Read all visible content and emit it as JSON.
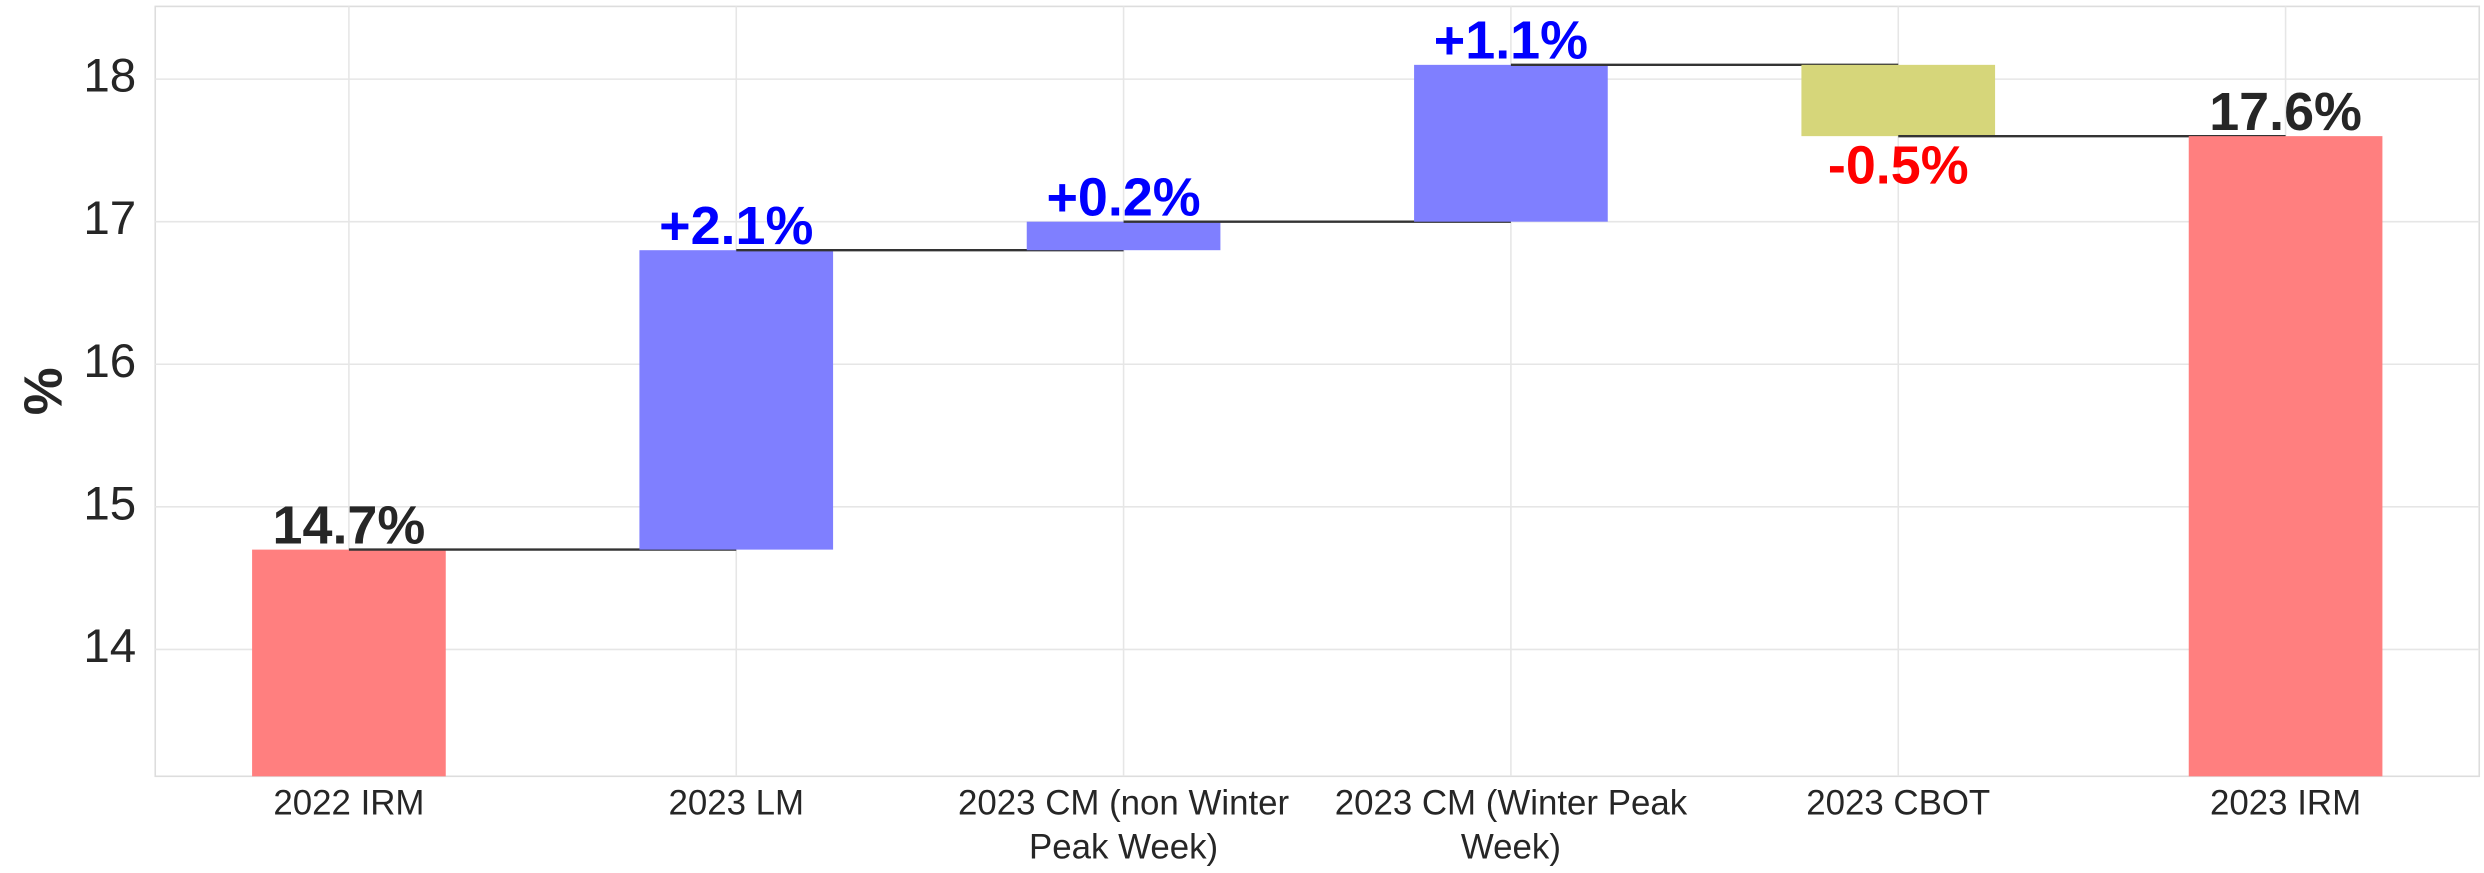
{
  "chart_data": {
    "type": "waterfall",
    "y_label": "%",
    "categories": [
      "2022 IRM",
      "2023 LM",
      "2023 CM (non Winter Peak Week)",
      "2023 CM (Winter Peak Week)",
      "2023 CBOT",
      "2023 IRM"
    ],
    "values": [
      14.7,
      2.1,
      0.2,
      1.1,
      -0.5,
      17.6
    ],
    "value_labels": [
      "14.7%",
      "+2.1%",
      "+0.2%",
      "+1.1%",
      "-0.5%",
      "17.6%"
    ],
    "measure": [
      "absolute",
      "relative",
      "relative",
      "relative",
      "relative",
      "absolute"
    ],
    "total_color": "#ff7f7f",
    "increase_color": "#7f7fff",
    "decrease_color": "#d6d67a",
    "total_label_color": "#262626",
    "increase_label_color": "#0000ff",
    "decrease_label_color": "#ff0000",
    "ylim": [
      13.11,
      18.51
    ],
    "yticks": [
      14,
      15,
      16,
      17,
      18
    ],
    "grid": true
  }
}
